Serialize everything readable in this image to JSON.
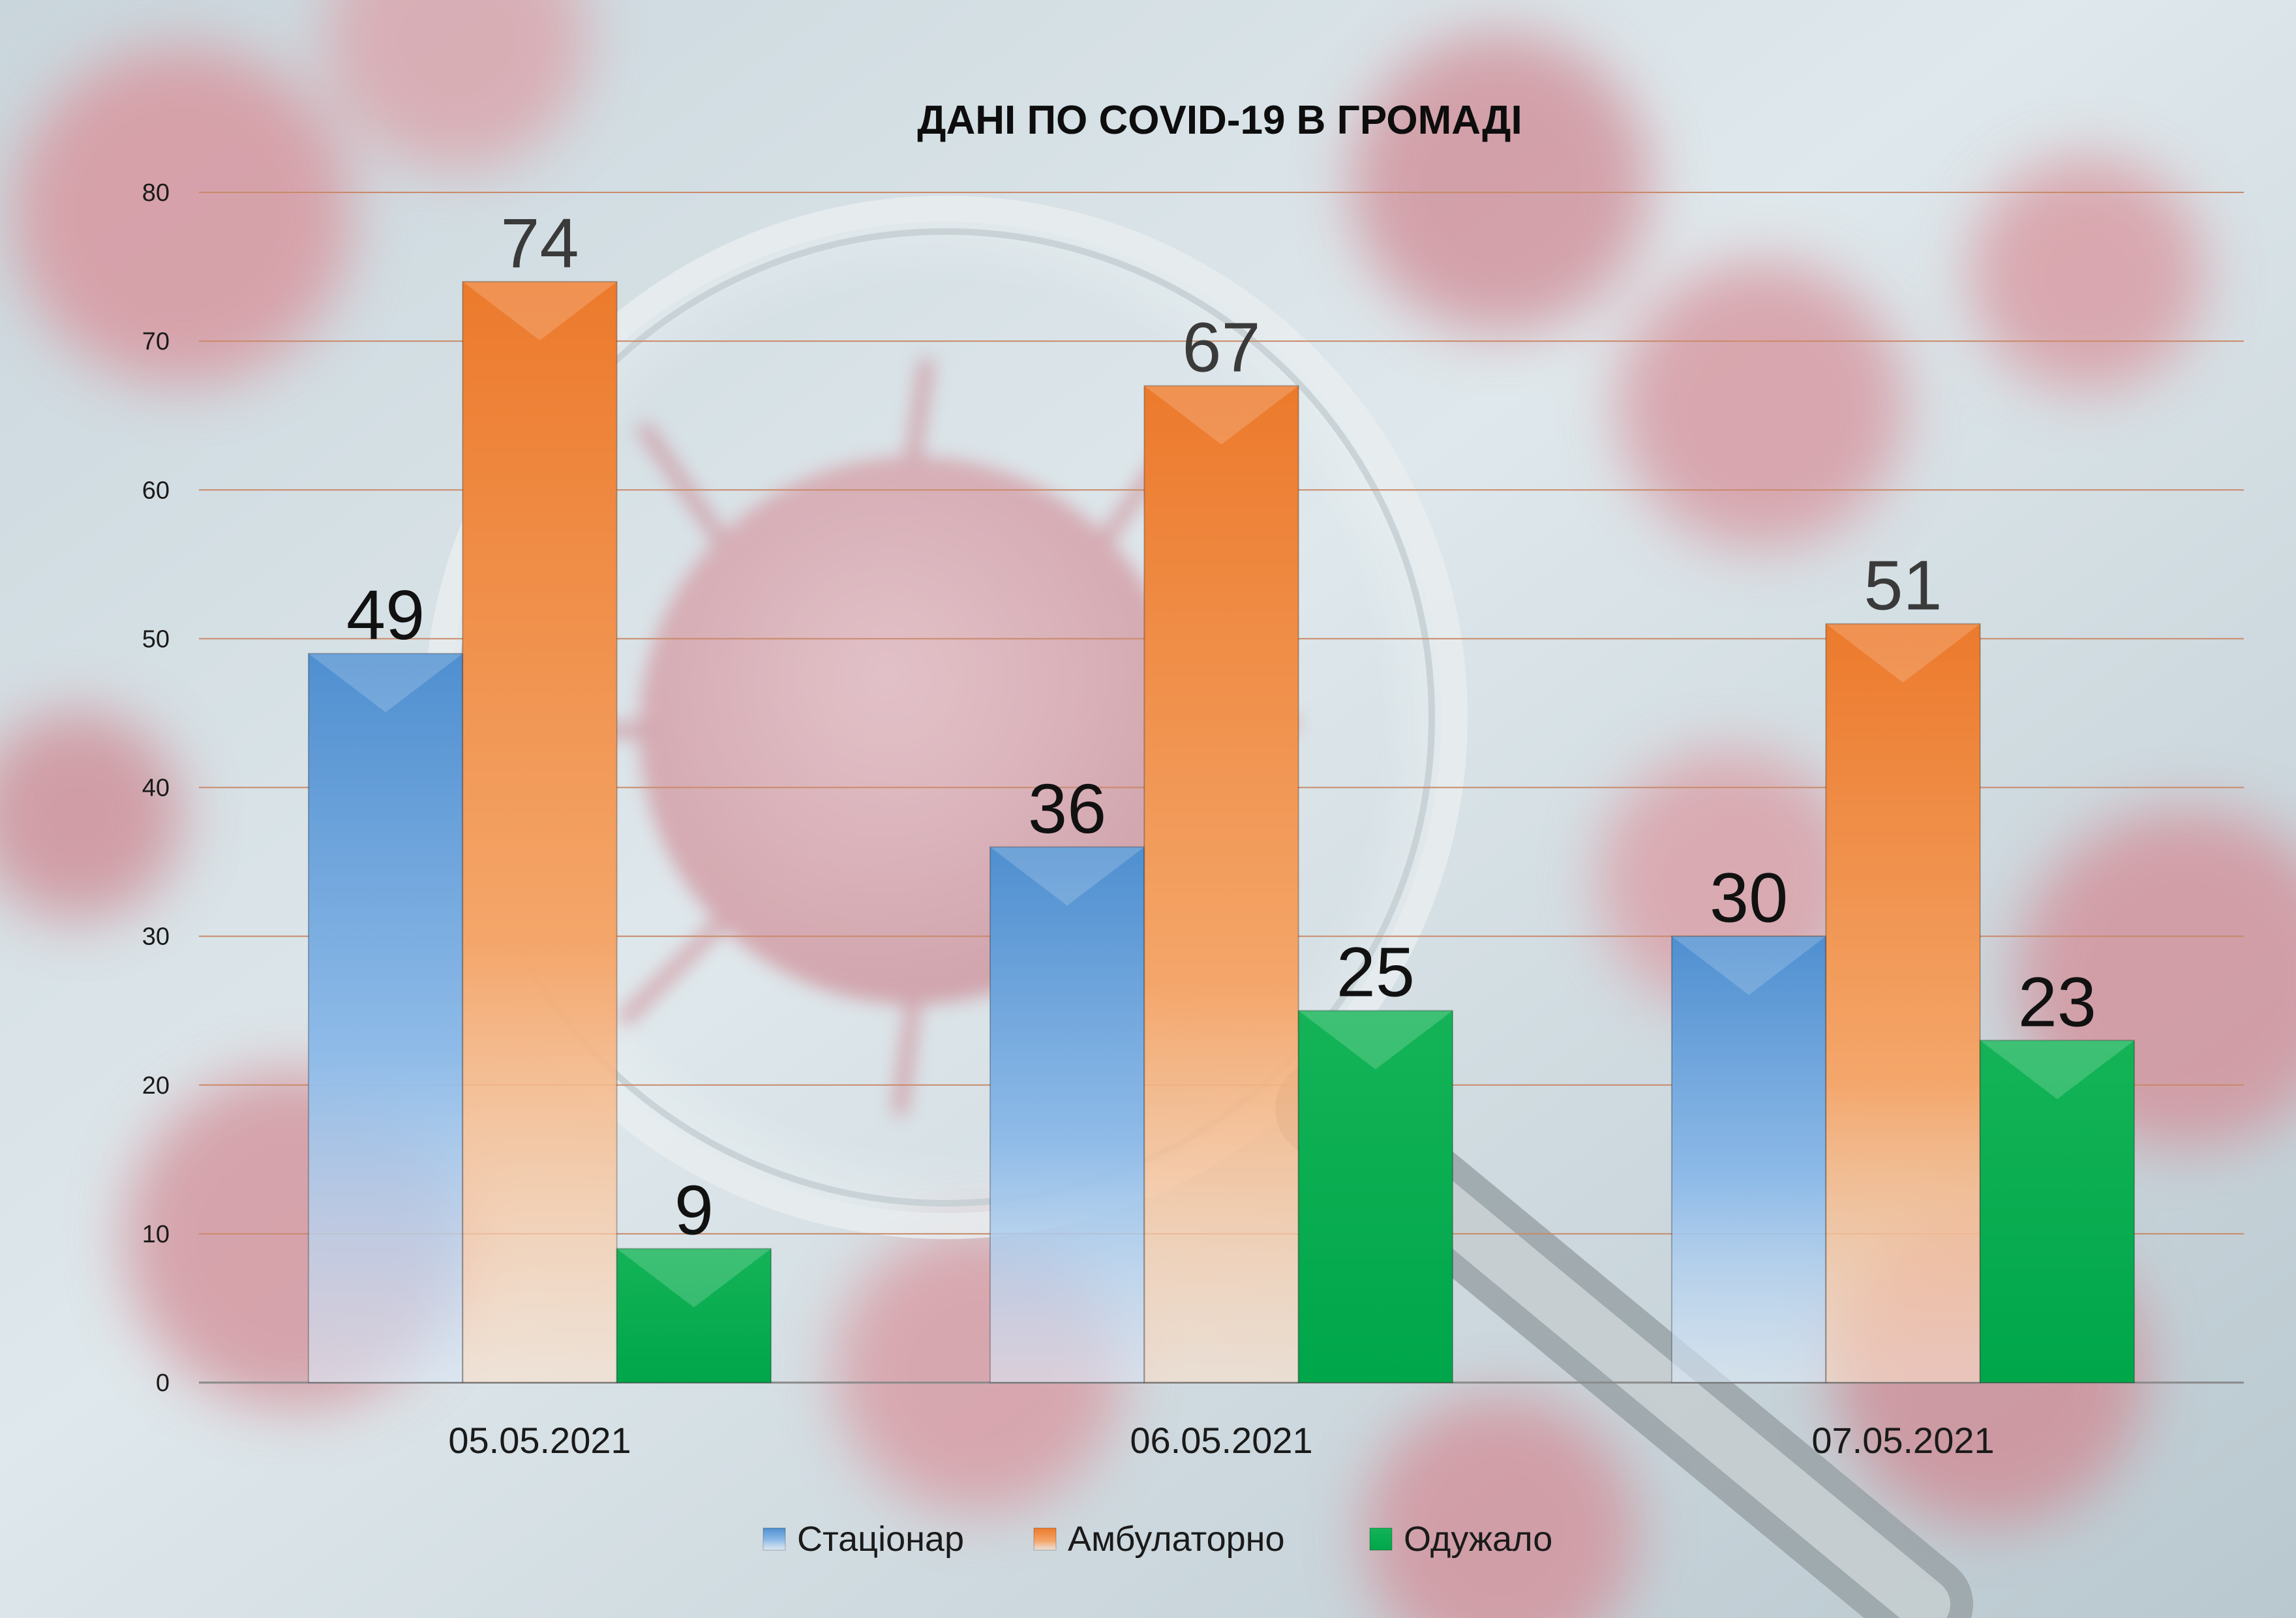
{
  "chart_data": {
    "type": "bar",
    "title": "ДАНІ ПО COVID-19 В ГРОМАДІ",
    "categories": [
      "05.05.2021",
      "06.05.2021",
      "07.05.2021"
    ],
    "series": [
      {
        "name": "Стаціонар",
        "values": [
          49,
          36,
          30
        ],
        "color": "#5b9bd5"
      },
      {
        "name": "Амбулаторно",
        "values": [
          74,
          67,
          51
        ],
        "color": "#ed7d31"
      },
      {
        "name": "Одужало",
        "values": [
          9,
          25,
          23
        ],
        "color": "#00b050"
      }
    ],
    "ylim": [
      0,
      80
    ],
    "yticks": [
      0,
      10,
      20,
      30,
      40,
      50,
      60,
      70,
      80
    ],
    "grid": true,
    "legend_position": "bottom",
    "data_labels": true
  }
}
